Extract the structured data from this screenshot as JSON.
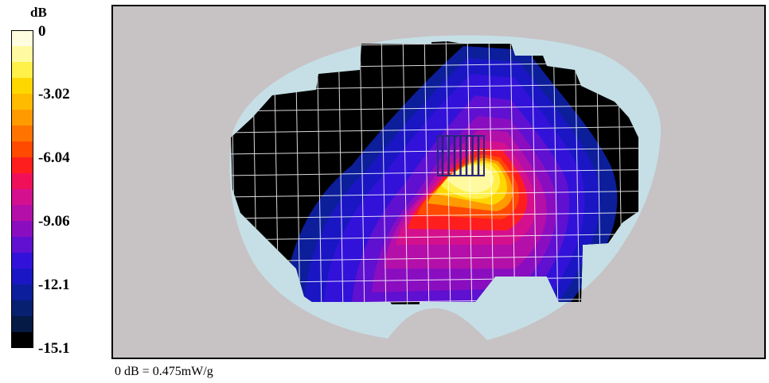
{
  "colorbar": {
    "unit": "dB",
    "ticks": [
      "0",
      "-3.02",
      "-6.04",
      "-9.06",
      "-12.1",
      "-15.1"
    ],
    "colors": [
      "#fffde0",
      "#fffaa0",
      "#fff04a",
      "#ffd700",
      "#ffbb00",
      "#ff9a00",
      "#ff7400",
      "#ff4a00",
      "#ff1e1e",
      "#f0105a",
      "#d4108e",
      "#b40fa8",
      "#8a0ec0",
      "#5f10d0",
      "#3212d8",
      "#1a16c4",
      "#0c1e9a",
      "#082070",
      "#051a44",
      "#000000"
    ]
  },
  "footer": {
    "reference": "0 dB = 0.475mW/g"
  },
  "chart_data": {
    "type": "heatmap",
    "title": "",
    "xlabel": "",
    "ylabel": "",
    "unit": "dB",
    "color_range": [
      -15.1,
      0
    ],
    "peak_value": 0,
    "reference": "0 dB = 0.475mW/g",
    "contour_levels": [
      -1.5,
      -3.02,
      -4.5,
      -6.04,
      -7.5,
      -9.06,
      -10.6,
      -12.1,
      -13.6,
      -15.1
    ],
    "grid": true
  }
}
